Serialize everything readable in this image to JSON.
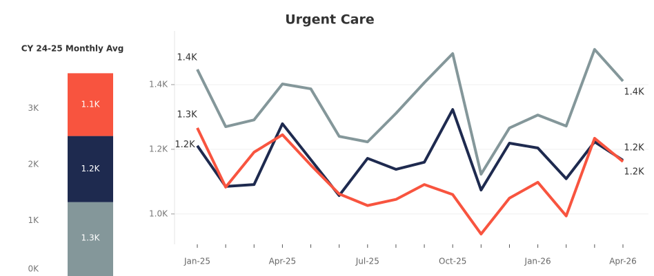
{
  "chart_data": [
    {
      "type": "stacked_bar",
      "title": "CY 24-25 Monthly Avg",
      "categories": [
        null
      ],
      "series": [
        {
          "color": "#84979a",
          "values": [
            1330
          ],
          "value_labels": [
            "1.3K"
          ]
        },
        {
          "color": "#1e2a4f",
          "values": [
            1180
          ],
          "value_labels": [
            "1.2K"
          ]
        },
        {
          "color": "#f8543f",
          "values": [
            1120
          ],
          "value_labels": [
            "1.1K"
          ]
        }
      ],
      "ylim": [
        0,
        3770
      ],
      "yticks": [
        {
          "value": 0,
          "label": "0K"
        },
        {
          "value": 1000,
          "label": "1K"
        },
        {
          "value": 2000,
          "label": "2K"
        },
        {
          "value": 3000,
          "label": "3K"
        }
      ]
    },
    {
      "type": "line",
      "title": "Urgent Care",
      "categories": [
        "Jan-25",
        null,
        null,
        "Apr-25",
        null,
        null,
        "Jul-25",
        null,
        null,
        "Oct-25",
        null,
        null,
        "Jan-26",
        null,
        null,
        "Apr-26"
      ],
      "series": [
        {
          "color": "#84979a",
          "values": [
            1447,
            1270,
            1291,
            1402,
            1387,
            1240,
            1223,
            1311,
            1406,
            1496,
            1123,
            1266,
            1306,
            1272,
            1509,
            1411
          ],
          "value_labels": [
            "1.4K",
            null,
            null,
            null,
            null,
            null,
            null,
            null,
            null,
            null,
            null,
            null,
            null,
            null,
            null,
            "1.4K"
          ]
        },
        {
          "color": "#1e2a4f",
          "values": [
            1211,
            1085,
            1091,
            1279,
            1168,
            1057,
            1172,
            1138,
            1160,
            1323,
            1074,
            1219,
            1204,
            1109,
            1223,
            1166
          ],
          "value_labels": [
            "1.2K",
            null,
            null,
            null,
            null,
            null,
            null,
            null,
            null,
            null,
            null,
            null,
            null,
            null,
            null,
            "1.2K"
          ]
        },
        {
          "color": "#f8543f",
          "values": [
            1266,
            1083,
            1191,
            1245,
            1151,
            1062,
            1026,
            1045,
            1091,
            1060,
            938,
            1049,
            1098,
            994,
            1234,
            1162
          ],
          "value_labels": [
            "1.3K",
            null,
            null,
            null,
            null,
            null,
            null,
            null,
            null,
            null,
            null,
            null,
            null,
            null,
            null,
            "1.2K"
          ]
        }
      ],
      "ylim": [
        906,
        1566
      ],
      "yticks": [
        {
          "value": 1000,
          "label": "1.0K"
        },
        {
          "value": 1200,
          "label": "1.2K"
        },
        {
          "value": 1400,
          "label": "1.4K"
        }
      ],
      "grid": true
    }
  ]
}
